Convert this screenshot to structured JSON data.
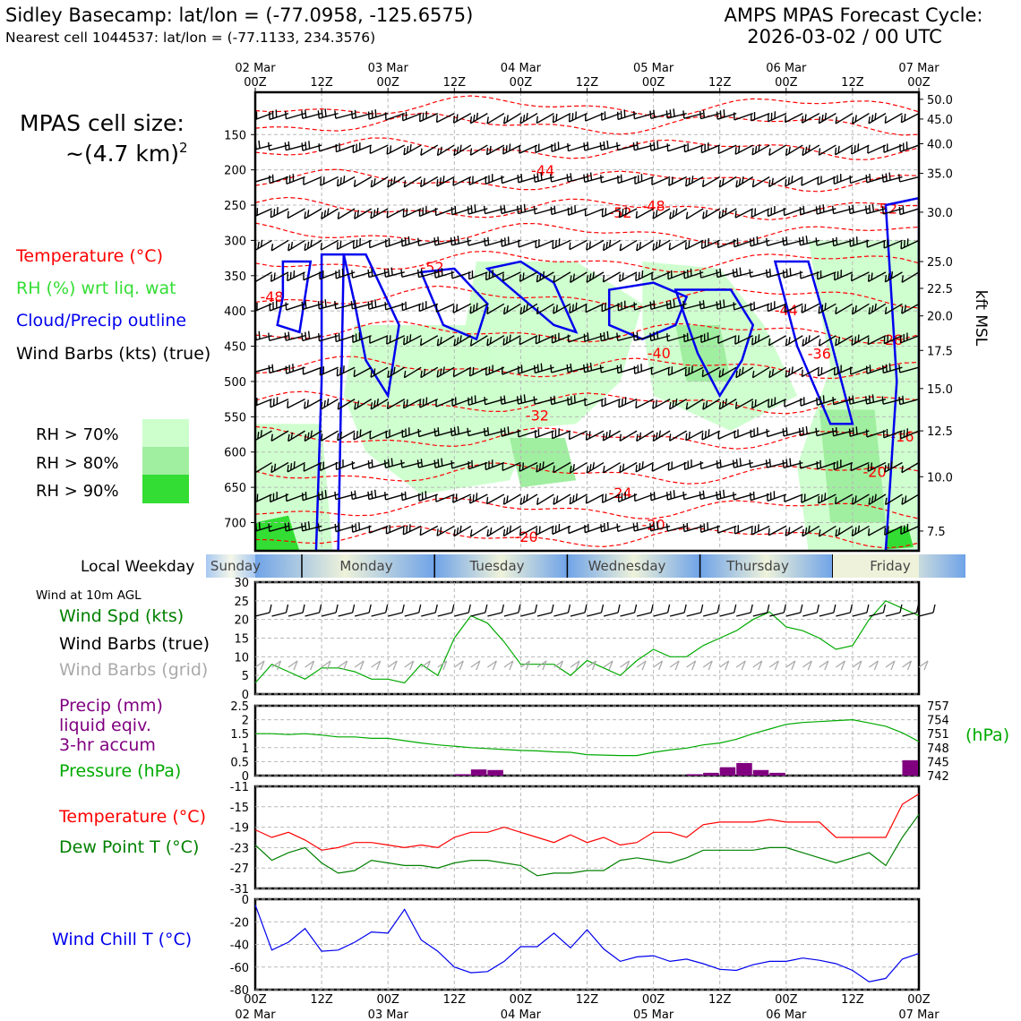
{
  "header": {
    "title_left": "Sidley Basecamp: lat/lon = (-77.0958, -125.6575)",
    "subtitle_left": "Nearest cell 1044537: lat/lon = (-77.1133, 234.3576)",
    "title_right_1": "AMPS MPAS Forecast Cycle:",
    "title_right_2": "2026-03-02 / 00 UTC",
    "cell_size_1": "MPAS cell size:",
    "cell_size_2": "~(4.7 km)",
    "cell_size_sup": "2"
  },
  "colors": {
    "temperature": "#ff0000",
    "rh": "#33dd33",
    "rh70": "#ccffcc",
    "rh80": "#a0eea0",
    "rh90": "#33dd33",
    "cloud": "#0000ee",
    "wind": "#000000",
    "grid_barbs": "#aaaaaa",
    "precip": "#800080",
    "pressure": "#00aa00",
    "dewpoint": "#008000",
    "windchill": "#0000ee",
    "weekday_band": "#6fa3e8"
  },
  "time_axis": {
    "ticks": [
      {
        "hour": "00Z",
        "day": "02 Mar"
      },
      {
        "hour": "12Z",
        "day": ""
      },
      {
        "hour": "00Z",
        "day": "03 Mar"
      },
      {
        "hour": "12Z",
        "day": ""
      },
      {
        "hour": "00Z",
        "day": "04 Mar"
      },
      {
        "hour": "12Z",
        "day": ""
      },
      {
        "hour": "00Z",
        "day": "05 Mar"
      },
      {
        "hour": "12Z",
        "day": ""
      },
      {
        "hour": "00Z",
        "day": "06 Mar"
      },
      {
        "hour": "12Z",
        "day": ""
      },
      {
        "hour": "00Z",
        "day": "07 Mar"
      }
    ]
  },
  "legend": {
    "temperature": "Temperature (°C)",
    "rh": "RH (%) wrt liq. wat",
    "cloud": "Cloud/Precip outline",
    "wind": "Wind Barbs (kts) (true)",
    "rh70": "RH > 70%",
    "rh80": "RH > 80%",
    "rh90": "RH > 90%"
  },
  "weekday": {
    "label": "Local Weekday",
    "days": [
      "Sunday",
      "Monday",
      "Tuesday",
      "Wednesday",
      "Thursday",
      "Friday"
    ]
  },
  "sfc_label": "Wind at 10m AGL",
  "panel_labels": {
    "wind_spd": "Wind Spd (kts)",
    "wind_barbs_true": "Wind Barbs (true)",
    "wind_barbs_grid": "Wind Barbs (grid)",
    "precip_1": "Precip (mm)",
    "precip_2": "liquid eqiv.",
    "precip_3": "3-hr accum",
    "pressure": "Pressure (hPa)",
    "pressure_unit": "(hPa)",
    "temp": "Temperature (°C)",
    "dew": "Dew Point T (°C)",
    "windchill": "Wind Chill T (°C)"
  },
  "chart_data": [
    {
      "type": "heatmap",
      "y_axis_label": "kft MSL",
      "pressure_ticks": [
        150,
        200,
        250,
        300,
        350,
        400,
        450,
        500,
        550,
        600,
        650,
        700
      ],
      "height_ticks": [
        "50.0",
        "45.0",
        "40.0",
        "35.0",
        "30.0",
        "25.0",
        "22.5",
        "20.0",
        "17.5",
        "15.0",
        "12.5",
        "10.0",
        "7.5"
      ],
      "height_tick_pressures": [
        100,
        128,
        163,
        205,
        260,
        330,
        368,
        407,
        456,
        510,
        570,
        635,
        712
      ],
      "pressure_range": [
        90,
        740
      ],
      "temperature_contour_labels": [
        {
          "text": "-44",
          "hour": 52,
          "p": 208
        },
        {
          "text": "-48",
          "hour": 72,
          "p": 258
        },
        {
          "text": "-52",
          "hour": 66,
          "p": 268
        },
        {
          "text": "-52",
          "hour": 114,
          "p": 262
        },
        {
          "text": "-52",
          "hour": 32,
          "p": 345
        },
        {
          "text": "-48",
          "hour": 3,
          "p": 387
        },
        {
          "text": "-44",
          "hour": 96,
          "p": 406
        },
        {
          "text": "-40",
          "hour": 73,
          "p": 467
        },
        {
          "text": "-36",
          "hour": 102,
          "p": 468
        },
        {
          "text": "-28",
          "hour": 115,
          "p": 448
        },
        {
          "text": "-32",
          "hour": 51,
          "p": 555
        },
        {
          "text": "-16",
          "hour": 117,
          "p": 585
        },
        {
          "text": "-20",
          "hour": 112,
          "p": 635
        },
        {
          "text": "-24",
          "hour": 66,
          "p": 665
        },
        {
          "text": "-20",
          "hour": 72,
          "p": 710
        },
        {
          "text": "-20",
          "hour": 49,
          "p": 727
        }
      ]
    },
    {
      "type": "line",
      "name": "surface_wind",
      "x_unit": "hours",
      "ylim": [
        0,
        30
      ],
      "yticks": [
        0,
        5,
        10,
        15,
        20,
        25,
        30
      ],
      "series": [
        {
          "name": "Wind Spd (kts)",
          "x": [
            0,
            3,
            6,
            9,
            12,
            15,
            18,
            21,
            24,
            27,
            30,
            33,
            36,
            39,
            42,
            45,
            48,
            51,
            54,
            57,
            60,
            63,
            66,
            69,
            72,
            75,
            78,
            81,
            84,
            87,
            90,
            93,
            96,
            99,
            102,
            105,
            108,
            111,
            114,
            117,
            120
          ],
          "values": [
            3,
            8,
            6,
            4,
            7,
            7,
            6,
            4,
            4,
            3,
            8,
            5,
            15,
            21,
            19,
            14,
            8,
            8,
            8,
            5,
            9,
            7,
            5,
            9,
            12,
            10,
            10,
            13,
            15,
            17,
            20,
            22,
            18,
            17,
            15,
            12,
            13,
            20,
            25,
            23,
            21
          ]
        }
      ]
    },
    {
      "type": "bar",
      "name": "precip_pressure",
      "x_unit": "hours",
      "ylim": [
        0,
        2.5
      ],
      "yticks": [
        0,
        0.5,
        1.0,
        1.5,
        2.0,
        2.5
      ],
      "pressure_ylim": [
        742,
        757
      ],
      "pressure_yticks": [
        742,
        745,
        748,
        751,
        754,
        757
      ],
      "series": [
        {
          "name": "Precip (mm)",
          "x": [
            37.5,
            40.5,
            43.5,
            79.5,
            82.5,
            85.5,
            88.5,
            91.5,
            94.5,
            118.5
          ],
          "values": [
            0.05,
            0.22,
            0.2,
            0.05,
            0.1,
            0.3,
            0.45,
            0.2,
            0.1,
            0.55
          ]
        },
        {
          "name": "Pressure (hPa)",
          "x": [
            0,
            3,
            6,
            9,
            12,
            15,
            18,
            21,
            24,
            27,
            30,
            33,
            36,
            39,
            42,
            45,
            48,
            51,
            54,
            57,
            60,
            63,
            66,
            69,
            72,
            75,
            78,
            81,
            84,
            87,
            90,
            93,
            96,
            99,
            102,
            105,
            108,
            111,
            114,
            117,
            120
          ],
          "values": [
            751,
            751,
            750.8,
            751,
            750.7,
            750.3,
            750.3,
            750,
            750,
            749.5,
            749,
            748.6,
            748.3,
            748,
            747.8,
            747.6,
            747.4,
            747.3,
            747.1,
            747,
            746.5,
            746.4,
            746.3,
            746.3,
            747,
            747.5,
            747.9,
            748.6,
            749,
            749.8,
            751,
            752,
            753,
            753.4,
            753.6,
            753.8,
            754,
            753.3,
            752.6,
            751.2,
            749.3
          ]
        }
      ]
    },
    {
      "type": "line",
      "name": "temperature_dewpoint",
      "x_unit": "hours",
      "ylim": [
        -31,
        -11
      ],
      "yticks": [
        -11,
        -15,
        -19,
        -23,
        -27,
        -31
      ],
      "series": [
        {
          "name": "Temperature (°C)",
          "x": [
            0,
            3,
            6,
            9,
            12,
            15,
            18,
            21,
            24,
            27,
            30,
            33,
            36,
            39,
            42,
            45,
            48,
            51,
            54,
            57,
            60,
            63,
            66,
            69,
            72,
            75,
            78,
            81,
            84,
            87,
            90,
            93,
            96,
            99,
            102,
            105,
            108,
            111,
            114,
            117,
            120
          ],
          "values": [
            -19.5,
            -21,
            -20,
            -21.5,
            -23.5,
            -23,
            -22,
            -22,
            -22.5,
            -23,
            -22.5,
            -23,
            -21,
            -20,
            -20,
            -19,
            -20,
            -21,
            -22,
            -20.5,
            -22,
            -21,
            -22.5,
            -22,
            -20,
            -20,
            -21,
            -18.5,
            -18,
            -18,
            -18,
            -17.5,
            -18,
            -18,
            -18,
            -21,
            -21,
            -21,
            -21,
            -14.5,
            -12.5
          ]
        },
        {
          "name": "Dew Point T (°C)",
          "x": [
            0,
            3,
            6,
            9,
            12,
            15,
            18,
            21,
            24,
            27,
            30,
            33,
            36,
            39,
            42,
            45,
            48,
            51,
            54,
            57,
            60,
            63,
            66,
            69,
            72,
            75,
            78,
            81,
            84,
            87,
            90,
            93,
            96,
            99,
            102,
            105,
            108,
            111,
            114,
            117,
            120
          ],
          "values": [
            -22.5,
            -25.5,
            -24,
            -23,
            -26,
            -28,
            -27.5,
            -25.5,
            -26,
            -26.5,
            -26.5,
            -27,
            -26,
            -25.5,
            -25.5,
            -26,
            -26.5,
            -28.5,
            -28,
            -28,
            -27.5,
            -27.5,
            -25.5,
            -25,
            -25.5,
            -26,
            -25,
            -23.5,
            -23.5,
            -23.5,
            -23.5,
            -23,
            -23,
            -24,
            -25,
            -26,
            -25,
            -24,
            -26.5,
            -21,
            -16.5
          ]
        }
      ]
    },
    {
      "type": "line",
      "name": "wind_chill",
      "x_unit": "hours",
      "ylim": [
        -80,
        0
      ],
      "yticks": [
        0,
        -20,
        -40,
        -60,
        -80
      ],
      "series": [
        {
          "name": "Wind Chill T (°C)",
          "x": [
            0,
            3,
            6,
            9,
            12,
            15,
            18,
            21,
            24,
            27,
            30,
            33,
            36,
            39,
            42,
            45,
            48,
            51,
            54,
            57,
            60,
            63,
            66,
            69,
            72,
            75,
            78,
            81,
            84,
            87,
            90,
            93,
            96,
            99,
            102,
            105,
            108,
            111,
            114,
            117,
            120
          ],
          "values": [
            -5,
            -45,
            -38,
            -26,
            -46,
            -45,
            -38,
            -29,
            -30,
            -9,
            -36,
            -46,
            -60,
            -65,
            -64,
            -55,
            -42,
            -42,
            -30,
            -43,
            -27,
            -44,
            -55,
            -51,
            -50,
            -55,
            -53,
            -57,
            -62,
            -63,
            -58,
            -55,
            -55,
            -52,
            -54,
            -57,
            -63,
            -73,
            -70,
            -53,
            -48
          ]
        }
      ]
    }
  ]
}
